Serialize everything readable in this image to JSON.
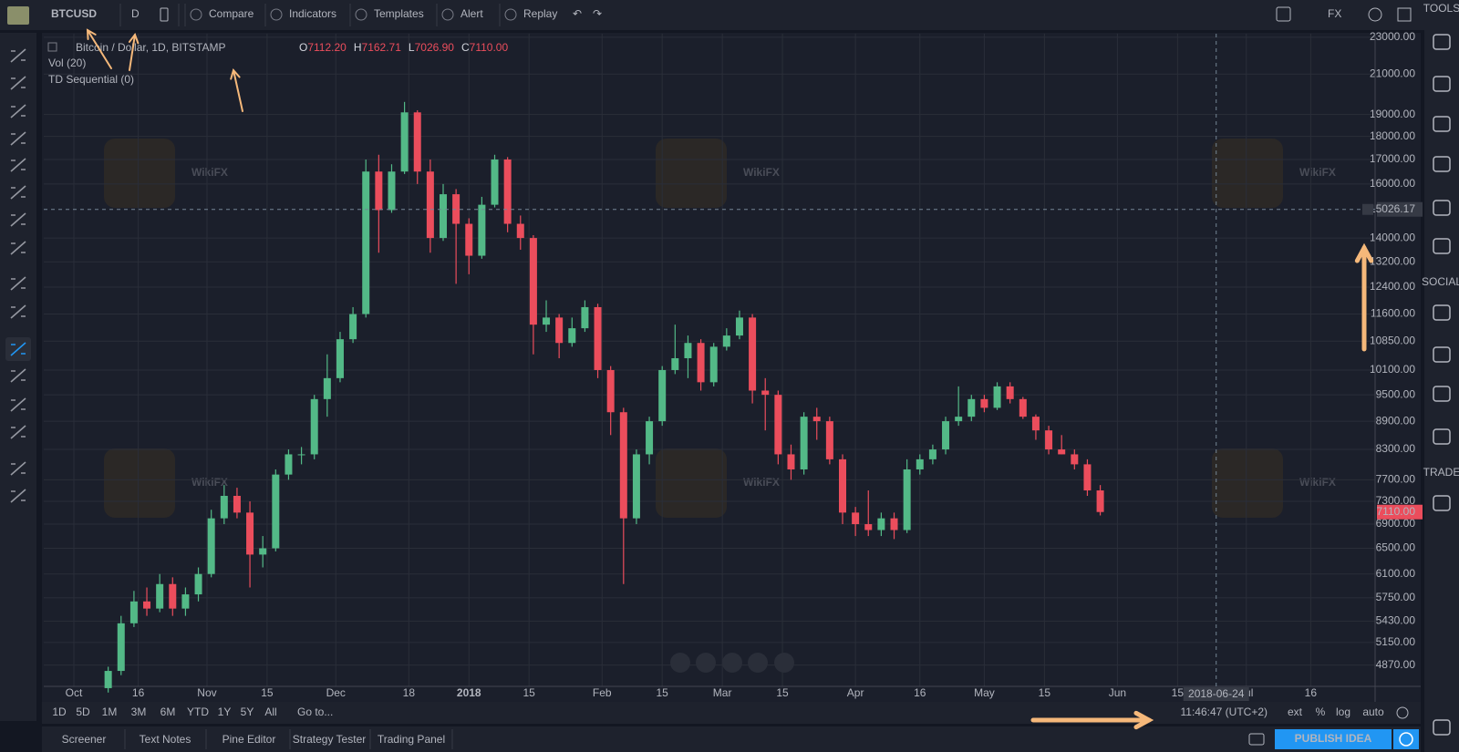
{
  "toolbar": {
    "symbol": "BTCUSD",
    "interval": "D",
    "buttons": [
      "Compare",
      "Indicators",
      "Templates",
      "Alert",
      "Replay"
    ],
    "currency": "FX"
  },
  "legend": {
    "title": "Bitcoin / Dollar, 1D, BITSTAMP",
    "ohlc": [
      {
        "key": "O",
        "value": "7112.20"
      },
      {
        "key": "H",
        "value": "7162.71"
      },
      {
        "key": "L",
        "value": "7026.90"
      },
      {
        "key": "C",
        "value": "7110.00"
      }
    ],
    "studies": [
      "Vol (20)",
      "TD Sequential (0)"
    ]
  },
  "watermark": "WikiFX",
  "chart_data": {
    "type": "candlestick",
    "log_scale": true,
    "grid": true,
    "up_color": "#53b987",
    "down_color": "#eb4d5c",
    "x": [
      "2017-10-09",
      "2017-10-12",
      "2017-10-15",
      "2017-10-18",
      "2017-10-21",
      "2017-10-24",
      "2017-10-27",
      "2017-10-30",
      "2017-11-02",
      "2017-11-05",
      "2017-11-08",
      "2017-11-11",
      "2017-11-14",
      "2017-11-17",
      "2017-11-20",
      "2017-11-23",
      "2017-11-26",
      "2017-11-29",
      "2017-12-02",
      "2017-12-05",
      "2017-12-08",
      "2017-12-11",
      "2017-12-14",
      "2017-12-17",
      "2017-12-20",
      "2017-12-23",
      "2017-12-26",
      "2017-12-29",
      "2018-01-01",
      "2018-01-04",
      "2018-01-07",
      "2018-01-10",
      "2018-01-13",
      "2018-01-16",
      "2018-01-19",
      "2018-01-22",
      "2018-01-25",
      "2018-01-28",
      "2018-01-31",
      "2018-02-03",
      "2018-02-06",
      "2018-02-09",
      "2018-02-12",
      "2018-02-15",
      "2018-02-18",
      "2018-02-21",
      "2018-02-24",
      "2018-02-27",
      "2018-03-02",
      "2018-03-05",
      "2018-03-08",
      "2018-03-11",
      "2018-03-14",
      "2018-03-17",
      "2018-03-20",
      "2018-03-23",
      "2018-03-26",
      "2018-03-29",
      "2018-04-01",
      "2018-04-04",
      "2018-04-07",
      "2018-04-10",
      "2018-04-13",
      "2018-04-16",
      "2018-04-19",
      "2018-04-22",
      "2018-04-25",
      "2018-04-28",
      "2018-05-01",
      "2018-05-04",
      "2018-05-07",
      "2018-05-10",
      "2018-05-13",
      "2018-05-16",
      "2018-05-19",
      "2018-05-22",
      "2018-05-25",
      "2018-05-28"
    ],
    "open": [
      4600,
      4800,
      5400,
      5700,
      5600,
      5950,
      5600,
      5800,
      6100,
      7000,
      7400,
      7100,
      6400,
      6500,
      7800,
      8200,
      8200,
      9400,
      9900,
      10900,
      11600,
      16500,
      15000,
      16500,
      19100,
      16500,
      14000,
      15600,
      14500,
      13400,
      15200,
      17000,
      14500,
      14000,
      11300,
      11500,
      10800,
      11200,
      11800,
      10100,
      9100,
      7000,
      8200,
      8900,
      10100,
      10400,
      10800,
      9800,
      10700,
      11000,
      11500,
      9600,
      9500,
      8200,
      7900,
      9000,
      8900,
      8100,
      7100,
      6900,
      6800,
      7000,
      6800,
      7900,
      8100,
      8300,
      8900,
      9000,
      9400,
      9200,
      9700,
      9400,
      9000,
      8700,
      8300,
      8200,
      8000,
      7500
    ],
    "high": [
      4850,
      5500,
      5850,
      5900,
      6100,
      6050,
      5900,
      6200,
      7150,
      7600,
      7550,
      7300,
      6700,
      7900,
      8300,
      8350,
      9500,
      10500,
      11100,
      11800,
      17000,
      17200,
      16800,
      19600,
      19200,
      17000,
      16000,
      15800,
      14700,
      15500,
      17200,
      17100,
      14800,
      14100,
      12000,
      11600,
      11500,
      12000,
      11900,
      10200,
      9200,
      8300,
      9000,
      10200,
      11300,
      11000,
      10900,
      10800,
      11200,
      11700,
      11600,
      9900,
      9600,
      8400,
      9100,
      9200,
      9000,
      8200,
      7200,
      7500,
      7100,
      7100,
      8100,
      8200,
      8400,
      9000,
      9700,
      9500,
      9500,
      9800,
      9800,
      9450,
      9050,
      8800,
      8600,
      8300,
      8100,
      7600
    ],
    "low": [
      4550,
      4750,
      5350,
      5500,
      5550,
      5500,
      5500,
      5700,
      6050,
      6900,
      7000,
      5900,
      6200,
      6450,
      7700,
      8000,
      8100,
      9000,
      9800,
      10800,
      11500,
      13500,
      14900,
      16400,
      16000,
      13500,
      13900,
      12500,
      12800,
      13300,
      15100,
      14200,
      13600,
      10500,
      11100,
      10400,
      10700,
      11100,
      9900,
      8600,
      5950,
      6900,
      8000,
      8800,
      10000,
      9900,
      9600,
      9700,
      10600,
      10900,
      9300,
      8700,
      8000,
      7700,
      7800,
      8500,
      8000,
      6900,
      6700,
      6700,
      6700,
      6650,
      6750,
      7800,
      8000,
      8200,
      8800,
      8900,
      9100,
      9150,
      9300,
      8950,
      8500,
      8200,
      8200,
      7900,
      7400,
      7050
    ],
    "close": [
      4800,
      5400,
      5700,
      5600,
      5950,
      5600,
      5800,
      6100,
      7000,
      7400,
      7100,
      6400,
      6500,
      7800,
      8200,
      8200,
      9400,
      9900,
      10900,
      11600,
      16500,
      15000,
      16500,
      19100,
      16500,
      14000,
      15600,
      14500,
      13400,
      15200,
      17000,
      14500,
      14000,
      11300,
      11500,
      10800,
      11200,
      11800,
      10100,
      9100,
      7000,
      8200,
      8900,
      10100,
      10400,
      10800,
      9800,
      10700,
      11000,
      11500,
      9600,
      9500,
      8200,
      7900,
      9000,
      8900,
      8100,
      7100,
      6900,
      6800,
      7000,
      6800,
      7900,
      8100,
      8300,
      8900,
      9000,
      9400,
      9200,
      9700,
      9400,
      9000,
      8700,
      8300,
      8200,
      8000,
      7500,
      7110
    ],
    "ylim": [
      4620,
      23200
    ],
    "yticks": [
      {
        "value": 23000,
        "label": "23000.00"
      },
      {
        "value": 21000,
        "label": "21000.00"
      },
      {
        "value": 19000,
        "label": "19000.00"
      },
      {
        "value": 18000,
        "label": "18000.00"
      },
      {
        "value": 17000,
        "label": "17000.00"
      },
      {
        "value": 16000,
        "label": "16000.00"
      },
      {
        "value": 14000,
        "label": "14000.00"
      },
      {
        "value": 13200,
        "label": "13200.00"
      },
      {
        "value": 12400,
        "label": "12400.00"
      },
      {
        "value": 11600,
        "label": "11600.00"
      },
      {
        "value": 10850,
        "label": "10850.00"
      },
      {
        "value": 10100,
        "label": "10100.00"
      },
      {
        "value": 9500,
        "label": "9500.00"
      },
      {
        "value": 8900,
        "label": "8900.00"
      },
      {
        "value": 8300,
        "label": "8300.00"
      },
      {
        "value": 7700,
        "label": "7700.00"
      },
      {
        "value": 7300,
        "label": "7300.00"
      },
      {
        "value": 6900,
        "label": "6900.00"
      },
      {
        "value": 6500,
        "label": "6500.00"
      },
      {
        "value": 6100,
        "label": "6100.00"
      },
      {
        "value": 5750,
        "label": "5750.00"
      },
      {
        "value": 5430,
        "label": "5430.00"
      },
      {
        "value": 5150,
        "label": "5150.00"
      },
      {
        "value": 4870,
        "label": "4870.00"
      }
    ],
    "xlim": [
      "2017-09-24",
      "2018-07-31"
    ],
    "xticks": [
      {
        "value": "2017-10-01",
        "label": "Oct"
      },
      {
        "value": "2017-10-16",
        "label": "16"
      },
      {
        "value": "2017-11-01",
        "label": "Nov"
      },
      {
        "value": "2017-11-15",
        "label": "15"
      },
      {
        "value": "2017-12-01",
        "label": "Dec"
      },
      {
        "value": "2017-12-18",
        "label": "18"
      },
      {
        "value": "2018-01-01",
        "label": "2018"
      },
      {
        "value": "2018-01-15",
        "label": "15"
      },
      {
        "value": "2018-02-01",
        "label": "Feb"
      },
      {
        "value": "2018-02-15",
        "label": "15"
      },
      {
        "value": "2018-03-01",
        "label": "Mar"
      },
      {
        "value": "2018-03-15",
        "label": "15"
      },
      {
        "value": "2018-04-01",
        "label": "Apr"
      },
      {
        "value": "2018-04-16",
        "label": "16"
      },
      {
        "value": "2018-05-01",
        "label": "May"
      },
      {
        "value": "2018-05-15",
        "label": "15"
      },
      {
        "value": "2018-06-01",
        "label": "Jun"
      },
      {
        "value": "2018-06-15",
        "label": "15"
      },
      {
        "value": "2018-07-01",
        "label": "Jul"
      },
      {
        "value": "2018-07-16",
        "label": "16"
      }
    ],
    "crosshair": {
      "x": "2018-06-24",
      "y": {
        "value": 15026.17,
        "label": "15026.17"
      }
    },
    "last_price": {
      "value": 7110,
      "label": "7110.00"
    }
  },
  "sidebar": {
    "sections": [
      "TOOLS",
      "SOCIAL",
      "TRADE"
    ]
  },
  "range_bar": {
    "ranges": [
      "1D",
      "5D",
      "1M",
      "3M",
      "6M",
      "YTD",
      "1Y",
      "5Y",
      "All"
    ],
    "goto": "Go to...",
    "clock": "11:46:47 (UTC+2)",
    "options": [
      "ext",
      "%",
      "log",
      "auto"
    ]
  },
  "tabs": [
    "Screener",
    "Text Notes",
    "Pine Editor",
    "Strategy Tester",
    "Trading Panel"
  ],
  "publish": "PUBLISH IDEA"
}
